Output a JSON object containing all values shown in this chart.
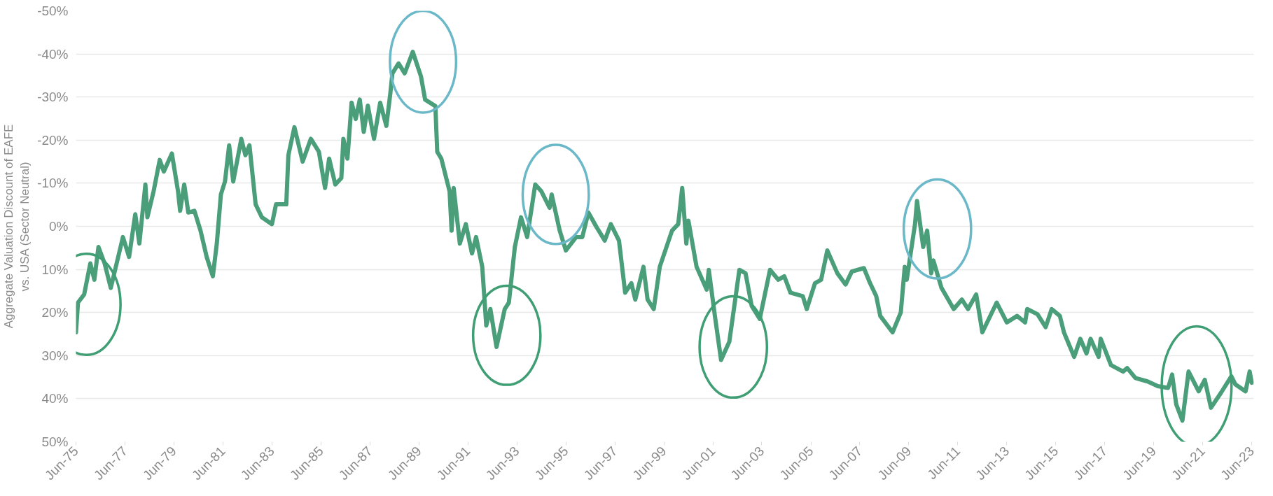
{
  "chart_data": {
    "type": "line",
    "ylabel": "Aggregate Valuation Discount of EAFE\nvs. USA (Sector Neutral)",
    "x": [
      "1975-06",
      "1975-07",
      "1975-10",
      "1976-01",
      "1976-03",
      "1976-05",
      "1976-08",
      "1976-11",
      "1977-05",
      "1977-08",
      "1977-11",
      "1978-01",
      "1978-04",
      "1978-05",
      "1978-08",
      "1978-11",
      "1979-01",
      "1979-05",
      "1979-08",
      "1979-09",
      "1979-11",
      "1980-01",
      "1980-04",
      "1980-07",
      "1980-10",
      "1981-01",
      "1981-03",
      "1981-05",
      "1981-07",
      "1981-09",
      "1981-11",
      "1982-03",
      "1982-05",
      "1982-07",
      "1982-10",
      "1983-01",
      "1983-06",
      "1983-08",
      "1984-01",
      "1984-02",
      "1984-05",
      "1984-09",
      "1985-01",
      "1985-05",
      "1985-08",
      "1985-10",
      "1986-01",
      "1986-04",
      "1986-05",
      "1986-07",
      "1986-09",
      "1986-11",
      "1987-01",
      "1987-03",
      "1987-05",
      "1987-08",
      "1987-11",
      "1988-02",
      "1988-04",
      "1988-05",
      "1988-08",
      "1988-11",
      "1989-03",
      "1989-07",
      "1989-09",
      "1990-02",
      "1990-03",
      "1990-05",
      "1990-09",
      "1990-10",
      "1990-11",
      "1991-02",
      "1991-05",
      "1991-08",
      "1991-10",
      "1992-01",
      "1992-03",
      "1992-05",
      "1992-08",
      "1992-12",
      "1993-02",
      "1993-05",
      "1993-08",
      "1993-11",
      "1994-03",
      "1994-06",
      "1994-10",
      "1994-11",
      "1995-03",
      "1995-06",
      "1995-11",
      "1996-02",
      "1996-05",
      "1996-09",
      "1997-01",
      "1997-04",
      "1997-08",
      "1997-11",
      "1998-02",
      "1998-04",
      "1998-08",
      "1998-10",
      "1999-01",
      "1999-04",
      "1999-10",
      "2000-01",
      "2000-03",
      "2000-05",
      "2000-06",
      "2000-10",
      "2001-03",
      "2001-04",
      "2001-07",
      "2001-10",
      "2002-02",
      "2002-07",
      "2002-10",
      "2003-01",
      "2003-05",
      "2003-10",
      "2004-02",
      "2004-05",
      "2004-08",
      "2005-02",
      "2005-04",
      "2005-08",
      "2005-11",
      "2006-02",
      "2006-07",
      "2006-11",
      "2007-02",
      "2007-08",
      "2007-11",
      "2008-02",
      "2008-04",
      "2008-10",
      "2009-02",
      "2009-04",
      "2009-05",
      "2009-09",
      "2009-10",
      "2010-01",
      "2010-03",
      "2010-05",
      "2010-06",
      "2010-10",
      "2011-04",
      "2011-08",
      "2011-11",
      "2012-03",
      "2012-06",
      "2013-01",
      "2013-06",
      "2013-11",
      "2014-03",
      "2014-04",
      "2014-09",
      "2015-01",
      "2015-04",
      "2015-08",
      "2015-10",
      "2016-03",
      "2016-06",
      "2016-09",
      "2016-11",
      "2017-03",
      "2017-04",
      "2017-09",
      "2018-03",
      "2018-05",
      "2018-09",
      "2019-03",
      "2019-08",
      "2020-01",
      "2020-03",
      "2020-05",
      "2020-08",
      "2020-11",
      "2021-04",
      "2021-07",
      "2021-10",
      "2022-03",
      "2022-08",
      "2022-10",
      "2023-03",
      "2023-05",
      "2023-06"
    ],
    "series": [
      {
        "color": "#4a9e7a",
        "values": [
          24.6,
          17.7,
          15.8,
          8.6,
          12.4,
          4.8,
          8.6,
          14.3,
          2.5,
          7.1,
          -2.8,
          4.0,
          -9.7,
          -2.1,
          -8.1,
          -15.4,
          -12.7,
          -16.9,
          -8.1,
          -3.6,
          -9.7,
          -3.2,
          -3.6,
          1.0,
          7.1,
          11.6,
          4.0,
          -7.4,
          -10.4,
          -18.8,
          -10.4,
          -20.3,
          -16.5,
          -18.8,
          -5.1,
          -2.1,
          -0.5,
          -5.1,
          -5.1,
          -16.5,
          -23.0,
          -15.0,
          -20.3,
          -17.3,
          -8.9,
          -15.7,
          -9.7,
          -11.2,
          -20.3,
          -15.7,
          -28.7,
          -24.9,
          -29.4,
          -21.9,
          -28.0,
          -20.3,
          -28.7,
          -23.3,
          -30.9,
          -35.5,
          -37.8,
          -35.5,
          -40.5,
          -34.8,
          -29.4,
          -27.9,
          -17.3,
          -15.7,
          -8.1,
          1.0,
          -8.9,
          4.0,
          -0.5,
          6.3,
          2.5,
          9.4,
          23.0,
          19.2,
          28.0,
          19.2,
          17.7,
          4.8,
          -2.1,
          2.5,
          -9.7,
          -8.1,
          -4.3,
          -7.4,
          1.0,
          5.6,
          2.5,
          2.5,
          -3.2,
          0.2,
          3.3,
          -0.5,
          3.3,
          15.4,
          13.2,
          17.0,
          9.4,
          17.0,
          19.2,
          9.4,
          1.0,
          -0.5,
          -8.9,
          4.0,
          -1.3,
          9.4,
          14.7,
          10.1,
          20.8,
          31.0,
          26.8,
          10.1,
          10.9,
          18.5,
          21.5,
          10.1,
          12.4,
          11.6,
          15.4,
          16.2,
          19.2,
          13.2,
          12.4,
          5.6,
          10.9,
          13.5,
          10.5,
          9.7,
          13.2,
          16.2,
          20.8,
          24.6,
          20.0,
          9.4,
          12.4,
          -0.5,
          -5.9,
          4.8,
          1.0,
          10.9,
          7.9,
          14.3,
          19.2,
          17.0,
          19.2,
          15.8,
          24.6,
          17.7,
          22.3,
          20.8,
          22.3,
          19.2,
          20.4,
          23.4,
          19.2,
          20.8,
          24.6,
          30.3,
          26.1,
          29.5,
          26.1,
          30.3,
          26.1,
          32.2,
          33.7,
          32.9,
          35.2,
          36.0,
          37.1,
          37.5,
          34.4,
          41.3,
          45.1,
          33.7,
          38.3,
          35.6,
          42.1,
          38.6,
          34.8,
          36.7,
          38.3,
          33.7,
          36.3
        ]
      }
    ],
    "ylim": [
      50,
      -50
    ],
    "yticks": [
      {
        "value": -50,
        "label": "-50%"
      },
      {
        "value": -40,
        "label": "-40%"
      },
      {
        "value": -30,
        "label": "-30%"
      },
      {
        "value": -20,
        "label": "-20%"
      },
      {
        "value": -10,
        "label": "-10%"
      },
      {
        "value": 0,
        "label": "0%"
      },
      {
        "value": 10,
        "label": "10%"
      },
      {
        "value": 20,
        "label": "20%"
      },
      {
        "value": 30,
        "label": "30%"
      },
      {
        "value": 40,
        "label": "40%"
      },
      {
        "value": 50,
        "label": "50%"
      }
    ],
    "xlim": [
      "1975-06",
      "2023-07"
    ],
    "xticks": [
      {
        "value": "1975-06",
        "label": "Jun-75"
      },
      {
        "value": "1977-06",
        "label": "Jun-77"
      },
      {
        "value": "1979-06",
        "label": "Jun-79"
      },
      {
        "value": "1981-06",
        "label": "Jun-81"
      },
      {
        "value": "1983-06",
        "label": "Jun-83"
      },
      {
        "value": "1985-06",
        "label": "Jun-85"
      },
      {
        "value": "1987-06",
        "label": "Jun-87"
      },
      {
        "value": "1989-06",
        "label": "Jun-89"
      },
      {
        "value": "1991-06",
        "label": "Jun-91"
      },
      {
        "value": "1993-06",
        "label": "Jun-93"
      },
      {
        "value": "1995-06",
        "label": "Jun-95"
      },
      {
        "value": "1997-06",
        "label": "Jun-97"
      },
      {
        "value": "1999-06",
        "label": "Jun-99"
      },
      {
        "value": "2001-06",
        "label": "Jun-01"
      },
      {
        "value": "2003-06",
        "label": "Jun-03"
      },
      {
        "value": "2005-06",
        "label": "Jun-05"
      },
      {
        "value": "2007-06",
        "label": "Jun-07"
      },
      {
        "value": "2009-06",
        "label": "Jun-09"
      },
      {
        "value": "2011-06",
        "label": "Jun-11"
      },
      {
        "value": "2013-06",
        "label": "Jun-13"
      },
      {
        "value": "2015-06",
        "label": "Jun-15"
      },
      {
        "value": "2017-06",
        "label": "Jun-17"
      },
      {
        "value": "2019-06",
        "label": "Jun-19"
      },
      {
        "value": "2021-06",
        "label": "Jun-21"
      },
      {
        "value": "2023-06",
        "label": "Jun-23"
      }
    ],
    "grid": "y",
    "marker": "none",
    "line_style": "solid"
  }
}
